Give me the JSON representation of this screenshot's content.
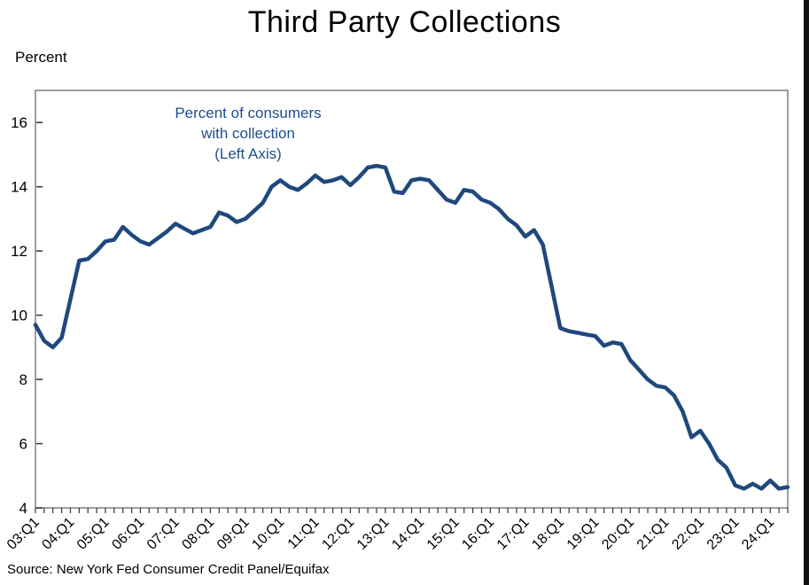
{
  "page": {
    "title": "Third Party Collections",
    "y_axis_title": "Percent",
    "source": "Source: New York Fed Consumer Credit Panel/Equifax",
    "annotation": {
      "line1": "Percent of consumers",
      "line2": "with collection",
      "line3": "(Left Axis)"
    }
  },
  "colors": {
    "line": "#1F497D",
    "annotation_text": "#1F4E8C",
    "plot_border": "#7F7F7F",
    "tick": "#333333",
    "text": "#000000",
    "background": "#FFFFFF"
  },
  "chart_data": {
    "type": "line",
    "title": "Third Party Collections",
    "xlabel": "",
    "ylabel": "Percent",
    "x_start": "2003:Q1",
    "x_end": "2024:Q3",
    "x_frequency": "quarterly",
    "x_tick_every": 4,
    "x_tick_labels": [
      "03:Q1",
      "04:Q1",
      "05:Q1",
      "06:Q1",
      "07:Q1",
      "08:Q1",
      "09:Q1",
      "10:Q1",
      "11:Q1",
      "12:Q1",
      "13:Q1",
      "14:Q1",
      "15:Q1",
      "16:Q1",
      "17:Q1",
      "18:Q1",
      "19:Q1",
      "20:Q1",
      "21:Q1",
      "22:Q1",
      "23:Q1",
      "24:Q1"
    ],
    "ylim": [
      4,
      17
    ],
    "y_ticks": [
      4,
      6,
      8,
      10,
      12,
      14,
      16
    ],
    "grid": false,
    "legend": "none",
    "annotation": "Percent of consumers with collection (Left Axis)",
    "series": [
      {
        "name": "Percent of consumers with collection (Left Axis)",
        "color": "#1F497D",
        "values": [
          9.7,
          9.2,
          9.0,
          9.3,
          10.5,
          11.7,
          11.75,
          12.0,
          12.3,
          12.35,
          12.75,
          12.5,
          12.3,
          12.2,
          12.4,
          12.6,
          12.85,
          12.7,
          12.55,
          12.65,
          12.75,
          13.2,
          13.1,
          12.9,
          13.0,
          13.25,
          13.5,
          14.0,
          14.2,
          14.0,
          13.9,
          14.1,
          14.35,
          14.15,
          14.2,
          14.3,
          14.05,
          14.3,
          14.6,
          14.65,
          14.6,
          13.85,
          13.8,
          14.2,
          14.25,
          14.2,
          13.9,
          13.6,
          13.5,
          13.9,
          13.85,
          13.6,
          13.5,
          13.3,
          13.0,
          12.8,
          12.45,
          12.65,
          12.2,
          10.9,
          9.6,
          9.5,
          9.45,
          9.4,
          9.35,
          9.05,
          9.15,
          9.1,
          8.6,
          8.3,
          8.0,
          7.8,
          7.75,
          7.5,
          7.0,
          6.2,
          6.4,
          6.0,
          5.5,
          5.25,
          4.7,
          4.6,
          4.75,
          4.6,
          4.85,
          4.6,
          4.65
        ]
      }
    ]
  }
}
